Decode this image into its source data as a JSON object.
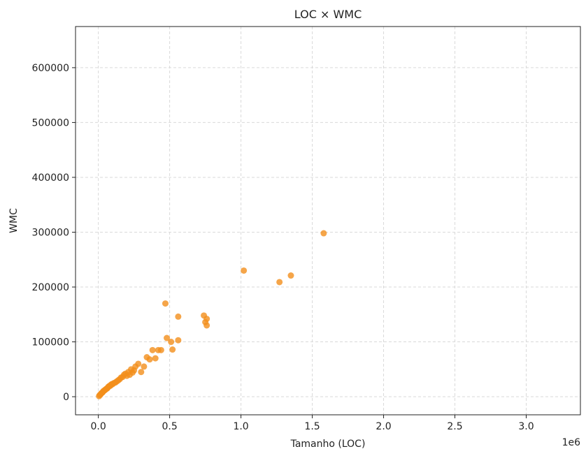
{
  "chart_data": {
    "type": "scatter",
    "title": "LOC × WMC",
    "xlabel": "Tamanho (LOC)",
    "ylabel": "WMC",
    "x_offset_text": "1e6",
    "x_scale_factor": 1000000,
    "xlim": [
      -160000,
      3380000
    ],
    "ylim": [
      -33000,
      675000
    ],
    "x_ticks": [
      0,
      500000,
      1000000,
      1500000,
      2000000,
      2500000,
      3000000
    ],
    "x_tick_labels": [
      "0.0",
      "0.5",
      "1.0",
      "1.5",
      "2.0",
      "2.5",
      "3.0"
    ],
    "y_ticks": [
      0,
      100000,
      200000,
      300000,
      400000,
      500000,
      600000
    ],
    "y_tick_labels": [
      "0",
      "100000",
      "200000",
      "300000",
      "400000",
      "500000",
      "600000"
    ],
    "grid": true,
    "marker_color": "#f28e1c",
    "x": [
      5000,
      10000,
      15000,
      20000,
      25000,
      30000,
      35000,
      40000,
      45000,
      50000,
      55000,
      60000,
      65000,
      70000,
      75000,
      80000,
      85000,
      90000,
      95000,
      100000,
      110000,
      120000,
      130000,
      140000,
      150000,
      160000,
      170000,
      180000,
      190000,
      200000,
      210000,
      220000,
      230000,
      240000,
      250000,
      260000,
      280000,
      300000,
      320000,
      340000,
      360000,
      380000,
      400000,
      420000,
      440000,
      470000,
      480000,
      510000,
      520000,
      560000,
      560000,
      740000,
      750000,
      760000,
      760000,
      1020000,
      1270000,
      1350000,
      1580000
    ],
    "y": [
      1000,
      3000,
      4000,
      6000,
      7000,
      8000,
      10000,
      11000,
      12000,
      13000,
      14000,
      15000,
      16000,
      18000,
      19000,
      20000,
      20000,
      22000,
      23000,
      23000,
      25000,
      26000,
      28000,
      30000,
      32000,
      35000,
      36000,
      40000,
      42000,
      38000,
      45000,
      40000,
      50000,
      44000,
      48000,
      55000,
      60000,
      45000,
      55000,
      72000,
      68000,
      85000,
      70000,
      85000,
      85000,
      170000,
      107000,
      100000,
      86000,
      103000,
      146000,
      148000,
      136000,
      130000,
      142000,
      230000,
      209000,
      221000,
      298000
    ]
  }
}
